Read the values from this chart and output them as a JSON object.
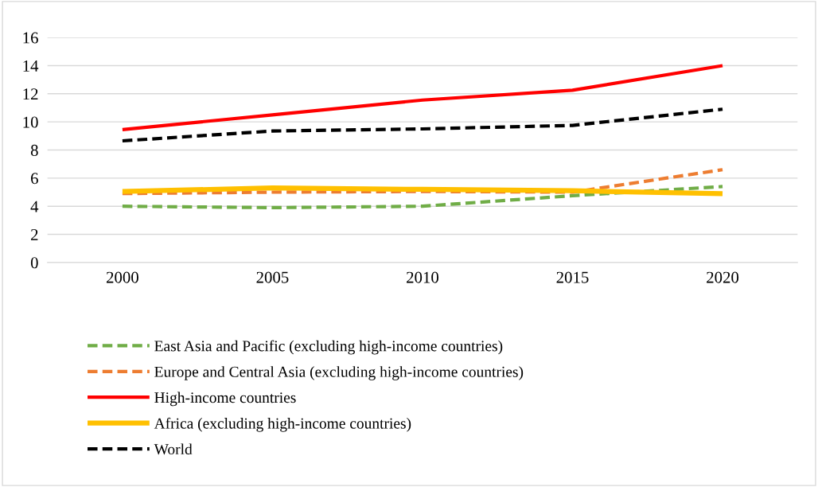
{
  "chart_data": {
    "type": "line",
    "categories": [
      "2000",
      "2005",
      "2010",
      "2015",
      "2020"
    ],
    "series": [
      {
        "name": "East Asia and Pacific (excluding high-income countries)",
        "color": "#70ad47",
        "line_style": "dashed",
        "values": [
          4.0,
          3.9,
          4.0,
          4.75,
          5.4
        ]
      },
      {
        "name": "Europe and Central Asia (excluding high-income countries)",
        "color": "#ed7d31",
        "line_style": "dashed",
        "values": [
          4.9,
          5.0,
          5.05,
          5.0,
          6.6
        ]
      },
      {
        "name": "High-income countries",
        "color": "#ff0000",
        "line_style": "solid",
        "values": [
          9.45,
          10.5,
          11.55,
          12.25,
          14.0
        ]
      },
      {
        "name": "Africa (excluding high-income countries)",
        "color": "#ffc000",
        "line_style": "solid",
        "values": [
          5.05,
          5.3,
          5.2,
          5.1,
          4.9
        ]
      },
      {
        "name": "World",
        "color": "#000000",
        "line_style": "dashed",
        "values": [
          8.65,
          9.35,
          9.5,
          9.75,
          10.9
        ]
      }
    ],
    "ylim": [
      0,
      16
    ],
    "yticks": [
      0,
      2,
      4,
      6,
      8,
      10,
      12,
      14,
      16
    ],
    "grid": "y",
    "legend": "bottom",
    "marker": "none"
  }
}
